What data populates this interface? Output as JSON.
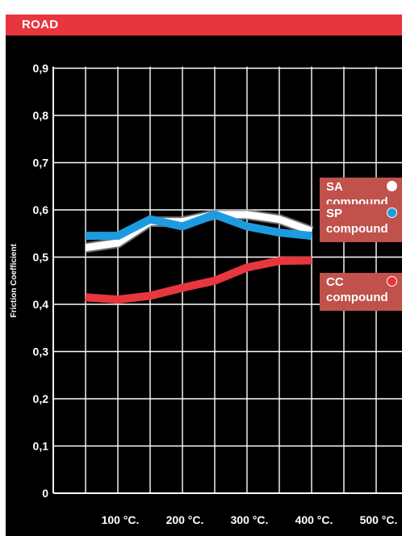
{
  "header": {
    "title": "ROAD"
  },
  "legend": [
    {
      "code": "SA",
      "label": "compound",
      "color": "#ffffff"
    },
    {
      "code": "SP",
      "label": "compound",
      "color": "#1e9be0"
    },
    {
      "code": "CC",
      "label": "compound",
      "color": "#e8363f"
    }
  ],
  "chart_data": {
    "type": "line",
    "title": "ROAD",
    "xlabel": "",
    "ylabel": "Friction Coefficient",
    "x_ticks": [
      {
        "value": 100,
        "label": "100 °C."
      },
      {
        "value": 200,
        "label": "200 °C."
      },
      {
        "value": 300,
        "label": "300 °C."
      },
      {
        "value": 400,
        "label": "400 °C."
      },
      {
        "value": 500,
        "label": "500 °C."
      }
    ],
    "y_ticks": [
      {
        "value": 0,
        "label": "0"
      },
      {
        "value": 0.1,
        "label": "0,1"
      },
      {
        "value": 0.2,
        "label": "0,2"
      },
      {
        "value": 0.3,
        "label": "0,3"
      },
      {
        "value": 0.4,
        "label": "0,4"
      },
      {
        "value": 0.5,
        "label": "0,5"
      },
      {
        "value": 0.6,
        "label": "0,6"
      },
      {
        "value": 0.7,
        "label": "0,7"
      },
      {
        "value": 0.8,
        "label": "0,8"
      },
      {
        "value": 0.9,
        "label": "0,9"
      }
    ],
    "xlim": [
      0,
      550
    ],
    "ylim": [
      0,
      0.9
    ],
    "grid": true,
    "legend_position": "right",
    "series": [
      {
        "name": "SA compound",
        "color": "#ffffff",
        "x": [
          50,
          100,
          150,
          200,
          250,
          300,
          350,
          400
        ],
        "y": [
          0.52,
          0.53,
          0.575,
          0.575,
          0.59,
          0.59,
          0.58,
          0.555
        ]
      },
      {
        "name": "SP compound",
        "color": "#1e9be0",
        "x": [
          50,
          100,
          150,
          200,
          250,
          300,
          350,
          400
        ],
        "y": [
          0.545,
          0.545,
          0.58,
          0.565,
          0.59,
          0.565,
          0.552,
          0.545
        ]
      },
      {
        "name": "CC compound",
        "color": "#e8363f",
        "x": [
          50,
          100,
          150,
          200,
          250,
          300,
          350,
          400
        ],
        "y": [
          0.415,
          0.41,
          0.418,
          0.435,
          0.45,
          0.478,
          0.492,
          0.493
        ]
      }
    ]
  }
}
